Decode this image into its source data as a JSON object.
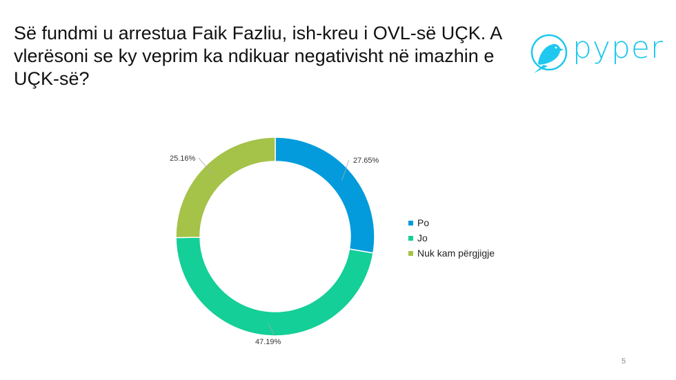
{
  "title": "Së fundmi u arrestua Faik Fazliu, ish-kreu i OVL-së UÇK. A vlerësoni se ky veprim ka ndikuar negativisht në imazhin e UÇK-së?",
  "logo": {
    "text": "pyper",
    "color": "#1EC8EF"
  },
  "page_number": "5",
  "chart_data": {
    "type": "pie",
    "variant": "donut",
    "title": "",
    "categories": [
      "Po",
      "Jo",
      "Nuk kam përgjigje"
    ],
    "values": [
      27.65,
      47.19,
      25.16
    ],
    "labels": [
      "27.65%",
      "47.19%",
      "25.16%"
    ],
    "colors": [
      "#039BDB",
      "#14CF97",
      "#A5C249"
    ],
    "legend_position": "right",
    "start": "top",
    "direction": "clockwise"
  }
}
